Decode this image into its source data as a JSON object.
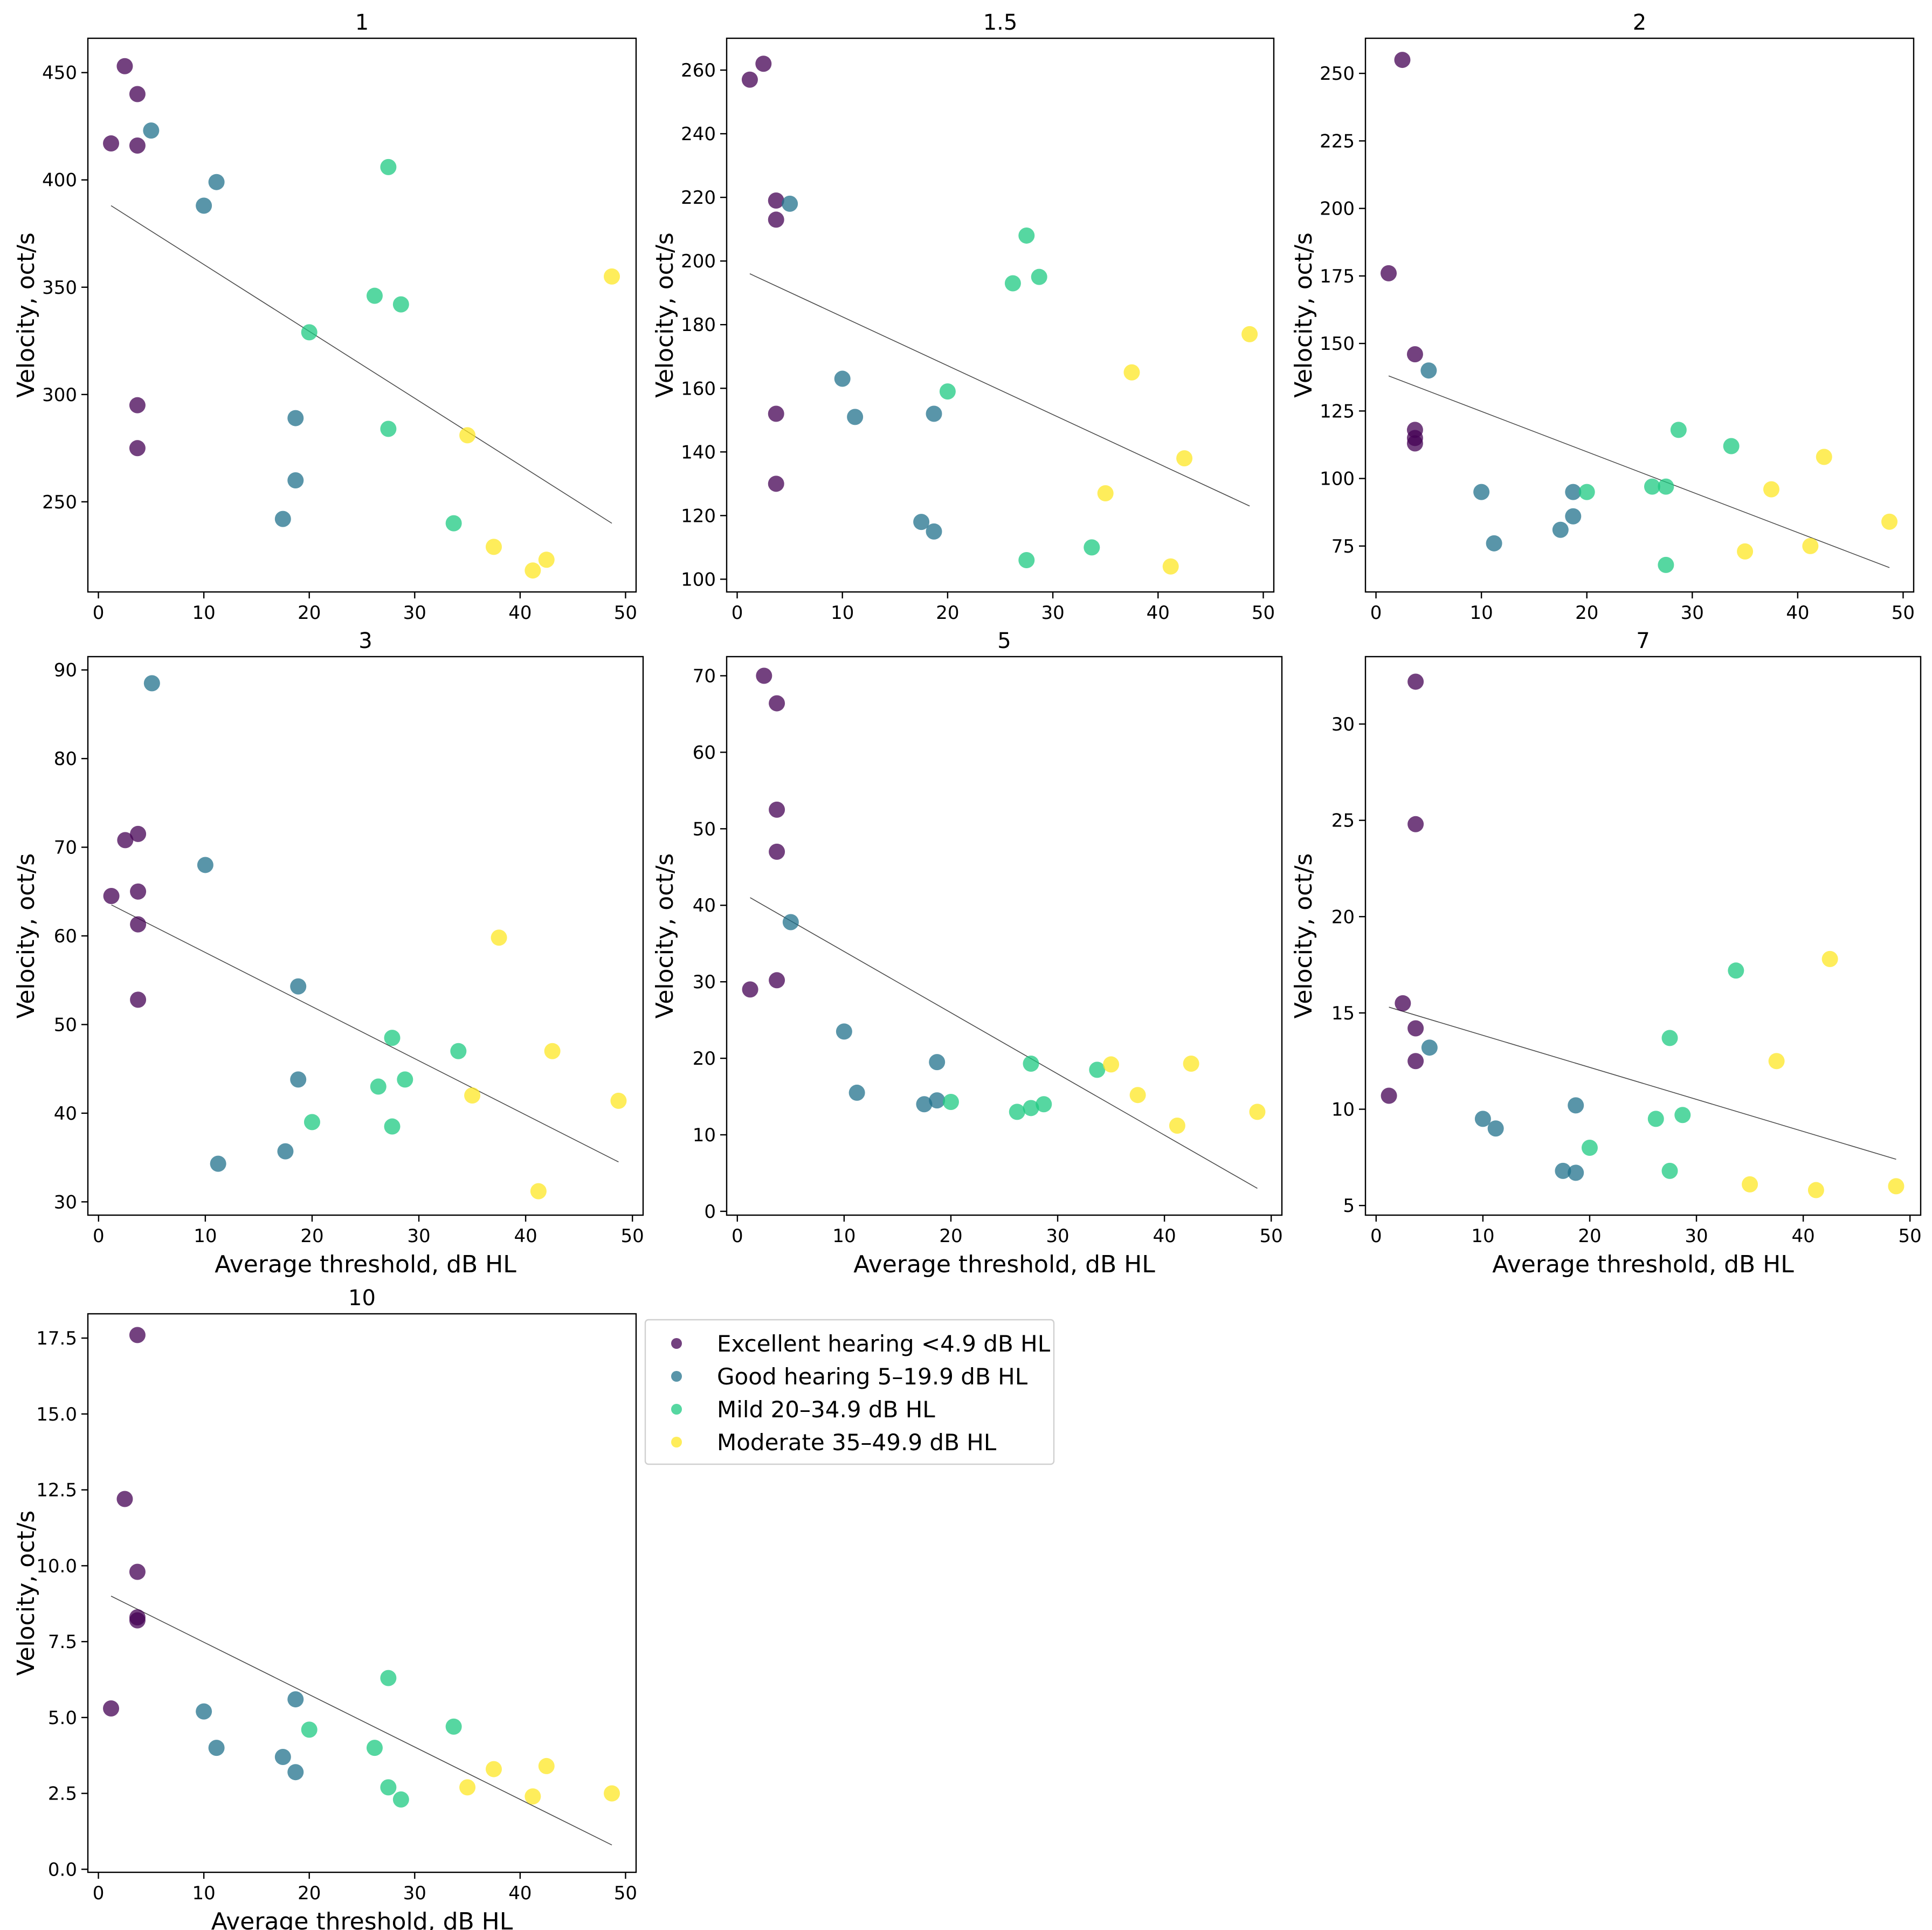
{
  "chart_data": {
    "type": "scatter",
    "figure_description_text": null,
    "xlabel": "Average threshold, dB HL",
    "ylabel": "Velocity, oct/s",
    "x_ticks": [
      0,
      10,
      20,
      30,
      40,
      50
    ],
    "legend": {
      "placement": "right of panel 10",
      "entries": [
        {
          "label": "Excellent hearing <4.9 dB HL",
          "color": "#440154"
        },
        {
          "label": "Good hearing 5–19.9 dB HL",
          "color": "#21718c"
        },
        {
          "label": "Mild 20–34.9 dB HL",
          "color": "#1ec981"
        },
        {
          "label": "Moderate 35–49.9 dB HL",
          "color": "#fde724"
        }
      ]
    },
    "panels": [
      {
        "title": "1",
        "xlim": [
          -1,
          51
        ],
        "ylim": [
          208,
          466
        ],
        "y_ticks": [
          250,
          300,
          350,
          400,
          450
        ],
        "y_tick_labels": [
          "250",
          "300",
          "350",
          "400",
          "450"
        ],
        "show_xlabel": false,
        "fit": [
          [
            1.2,
            388
          ],
          [
            48.7,
            240
          ]
        ],
        "groups": [
          [
            [
              2.5,
              453
            ],
            [
              3.7,
              440
            ],
            [
              1.2,
              417
            ],
            [
              3.7,
              416
            ],
            [
              3.7,
              295
            ],
            [
              3.7,
              275
            ]
          ],
          [
            [
              5,
              423
            ],
            [
              11.2,
              399
            ],
            [
              10,
              388
            ],
            [
              18.7,
              289
            ],
            [
              18.7,
              260
            ],
            [
              17.5,
              242
            ]
          ],
          [
            [
              27.5,
              406
            ],
            [
              26.2,
              346
            ],
            [
              28.7,
              342
            ],
            [
              20,
              329
            ],
            [
              27.5,
              284
            ],
            [
              33.7,
              240
            ]
          ],
          [
            [
              48.7,
              355
            ],
            [
              35,
              281
            ],
            [
              37.5,
              229
            ],
            [
              42.5,
              223
            ],
            [
              41.2,
              218
            ]
          ]
        ]
      },
      {
        "title": "1.5",
        "xlim": [
          -1,
          51
        ],
        "ylim": [
          96,
          270
        ],
        "y_ticks": [
          100,
          120,
          140,
          160,
          180,
          200,
          220,
          240,
          260
        ],
        "y_tick_labels": [
          "100",
          "120",
          "140",
          "160",
          "180",
          "200",
          "220",
          "240",
          "260"
        ],
        "show_xlabel": false,
        "fit": [
          [
            1.2,
            196
          ],
          [
            48.7,
            123
          ]
        ],
        "groups": [
          [
            [
              2.5,
              262
            ],
            [
              1.2,
              257
            ],
            [
              3.7,
              219
            ],
            [
              3.7,
              213
            ],
            [
              3.7,
              152
            ],
            [
              3.7,
              130
            ]
          ],
          [
            [
              5,
              218
            ],
            [
              10,
              163
            ],
            [
              11.2,
              151
            ],
            [
              18.7,
              152
            ],
            [
              17.5,
              118
            ],
            [
              18.7,
              115
            ]
          ],
          [
            [
              27.5,
              208
            ],
            [
              28.7,
              195
            ],
            [
              26.2,
              193
            ],
            [
              20,
              159
            ],
            [
              33.7,
              110
            ],
            [
              27.5,
              106
            ]
          ],
          [
            [
              48.7,
              177
            ],
            [
              37.5,
              165
            ],
            [
              42.5,
              138
            ],
            [
              35,
              127
            ],
            [
              41.2,
              104
            ]
          ]
        ]
      },
      {
        "title": "2",
        "xlim": [
          -1,
          51
        ],
        "ylim": [
          58,
          263
        ],
        "y_ticks": [
          75,
          100,
          125,
          150,
          175,
          200,
          225,
          250
        ],
        "y_tick_labels": [
          "75",
          "100",
          "125",
          "150",
          "175",
          "200",
          "225",
          "250"
        ],
        "show_xlabel": false,
        "fit": [
          [
            1.2,
            138
          ],
          [
            48.7,
            67
          ]
        ],
        "groups": [
          [
            [
              2.5,
              255
            ],
            [
              1.2,
              176
            ],
            [
              3.7,
              146
            ],
            [
              3.7,
              118
            ],
            [
              3.7,
              115
            ],
            [
              3.7,
              113
            ]
          ],
          [
            [
              5,
              140
            ],
            [
              10,
              95
            ],
            [
              11.2,
              76
            ],
            [
              18.7,
              95
            ],
            [
              18.7,
              86
            ],
            [
              17.5,
              81
            ]
          ],
          [
            [
              28.7,
              118
            ],
            [
              33.7,
              112
            ],
            [
              20,
              95
            ],
            [
              26.2,
              97
            ],
            [
              27.5,
              97
            ],
            [
              27.5,
              68
            ]
          ],
          [
            [
              42.5,
              108
            ],
            [
              37.5,
              96
            ],
            [
              48.7,
              84
            ],
            [
              41.2,
              75
            ],
            [
              35,
              73
            ]
          ]
        ]
      },
      {
        "title": "3",
        "xlim": [
          -1,
          51
        ],
        "ylim": [
          28.5,
          91.5
        ],
        "y_ticks": [
          30,
          40,
          50,
          60,
          70,
          80,
          90
        ],
        "y_tick_labels": [
          "30",
          "40",
          "50",
          "60",
          "70",
          "80",
          "90"
        ],
        "show_xlabel": true,
        "fit": [
          [
            1.2,
            63.5
          ],
          [
            48.7,
            34.5
          ]
        ],
        "groups": [
          [
            [
              3.7,
              71.5
            ],
            [
              2.5,
              70.8
            ],
            [
              3.7,
              65
            ],
            [
              1.2,
              64.5
            ],
            [
              3.7,
              61.3
            ],
            [
              3.7,
              52.8
            ]
          ],
          [
            [
              5,
              88.5
            ],
            [
              10,
              68
            ],
            [
              18.7,
              54.3
            ],
            [
              18.7,
              43.8
            ],
            [
              17.5,
              35.7
            ],
            [
              11.2,
              34.3
            ]
          ],
          [
            [
              27.5,
              48.5
            ],
            [
              33.7,
              47
            ],
            [
              28.7,
              43.8
            ],
            [
              26.2,
              43
            ],
            [
              20,
              39
            ],
            [
              27.5,
              38.5
            ]
          ],
          [
            [
              37.5,
              59.8
            ],
            [
              42.5,
              47
            ],
            [
              35,
              42
            ],
            [
              48.7,
              41.4
            ],
            [
              41.2,
              31.2
            ]
          ]
        ]
      },
      {
        "title": "5",
        "xlim": [
          -1,
          51
        ],
        "ylim": [
          -0.5,
          72.5
        ],
        "y_ticks": [
          0,
          10,
          20,
          30,
          40,
          50,
          60,
          70
        ],
        "y_tick_labels": [
          "0",
          "10",
          "20",
          "30",
          "40",
          "50",
          "60",
          "70"
        ],
        "show_xlabel": true,
        "fit": [
          [
            1.2,
            41
          ],
          [
            48.7,
            3
          ]
        ],
        "groups": [
          [
            [
              2.5,
              70
            ],
            [
              3.7,
              66.4
            ],
            [
              3.7,
              52.5
            ],
            [
              3.7,
              47
            ],
            [
              3.7,
              30.2
            ],
            [
              1.2,
              29
            ]
          ],
          [
            [
              5,
              37.8
            ],
            [
              10,
              23.5
            ],
            [
              18.7,
              19.5
            ],
            [
              11.2,
              15.5
            ],
            [
              18.7,
              14.5
            ],
            [
              17.5,
              14
            ]
          ],
          [
            [
              27.5,
              19.3
            ],
            [
              33.7,
              18.5
            ],
            [
              20,
              14.3
            ],
            [
              28.7,
              14
            ],
            [
              27.5,
              13.5
            ],
            [
              26.2,
              13
            ]
          ],
          [
            [
              35,
              19.2
            ],
            [
              42.5,
              19.3
            ],
            [
              37.5,
              15.2
            ],
            [
              41.2,
              11.2
            ],
            [
              48.7,
              13
            ]
          ]
        ]
      },
      {
        "title": "7",
        "xlim": [
          -1,
          51
        ],
        "ylim": [
          4.5,
          33.5
        ],
        "y_ticks": [
          5,
          10,
          15,
          20,
          25,
          30
        ],
        "y_tick_labels": [
          "5",
          "10",
          "15",
          "20",
          "25",
          "30"
        ],
        "show_xlabel": true,
        "fit": [
          [
            1.2,
            15.3
          ],
          [
            48.7,
            7.4
          ]
        ],
        "groups": [
          [
            [
              3.7,
              32.2
            ],
            [
              3.7,
              24.8
            ],
            [
              2.5,
              15.5
            ],
            [
              3.7,
              14.2
            ],
            [
              3.7,
              12.5
            ],
            [
              1.2,
              10.7
            ]
          ],
          [
            [
              5,
              13.2
            ],
            [
              18.7,
              10.2
            ],
            [
              10,
              9.5
            ],
            [
              11.2,
              9
            ],
            [
              17.5,
              6.8
            ],
            [
              18.7,
              6.7
            ]
          ],
          [
            [
              33.7,
              17.2
            ],
            [
              27.5,
              13.7
            ],
            [
              28.7,
              9.7
            ],
            [
              26.2,
              9.5
            ],
            [
              20,
              8
            ],
            [
              27.5,
              6.8
            ]
          ],
          [
            [
              42.5,
              17.8
            ],
            [
              37.5,
              12.5
            ],
            [
              35,
              6.1
            ],
            [
              41.2,
              5.8
            ],
            [
              48.7,
              6
            ]
          ]
        ]
      },
      {
        "title": "10",
        "xlim": [
          -1,
          51
        ],
        "ylim": [
          -0.1,
          18.3
        ],
        "y_ticks": [
          0,
          2.5,
          5,
          7.5,
          10,
          12.5,
          15,
          17.5
        ],
        "y_tick_labels": [
          "0.0",
          "2.5",
          "5.0",
          "7.5",
          "10.0",
          "12.5",
          "15.0",
          "17.5"
        ],
        "show_xlabel": true,
        "fit": [
          [
            1.2,
            9
          ],
          [
            48.7,
            0.8
          ]
        ],
        "groups": [
          [
            [
              3.7,
              17.6
            ],
            [
              2.5,
              12.2
            ],
            [
              3.7,
              9.8
            ],
            [
              3.7,
              8.3
            ],
            [
              3.7,
              8.2
            ],
            [
              1.2,
              5.3
            ]
          ],
          [
            [
              18.7,
              5.6
            ],
            [
              10,
              5.2
            ],
            [
              11.2,
              4
            ],
            [
              17.5,
              3.7
            ],
            [
              18.7,
              3.2
            ]
          ],
          [
            [
              27.5,
              6.3
            ],
            [
              33.7,
              4.7
            ],
            [
              20,
              4.6
            ],
            [
              26.2,
              4
            ],
            [
              27.5,
              2.7
            ],
            [
              28.7,
              2.3
            ]
          ],
          [
            [
              35,
              2.7
            ],
            [
              37.5,
              3.3
            ],
            [
              42.5,
              3.4
            ],
            [
              41.2,
              2.4
            ],
            [
              48.7,
              2.5
            ]
          ]
        ]
      }
    ]
  }
}
